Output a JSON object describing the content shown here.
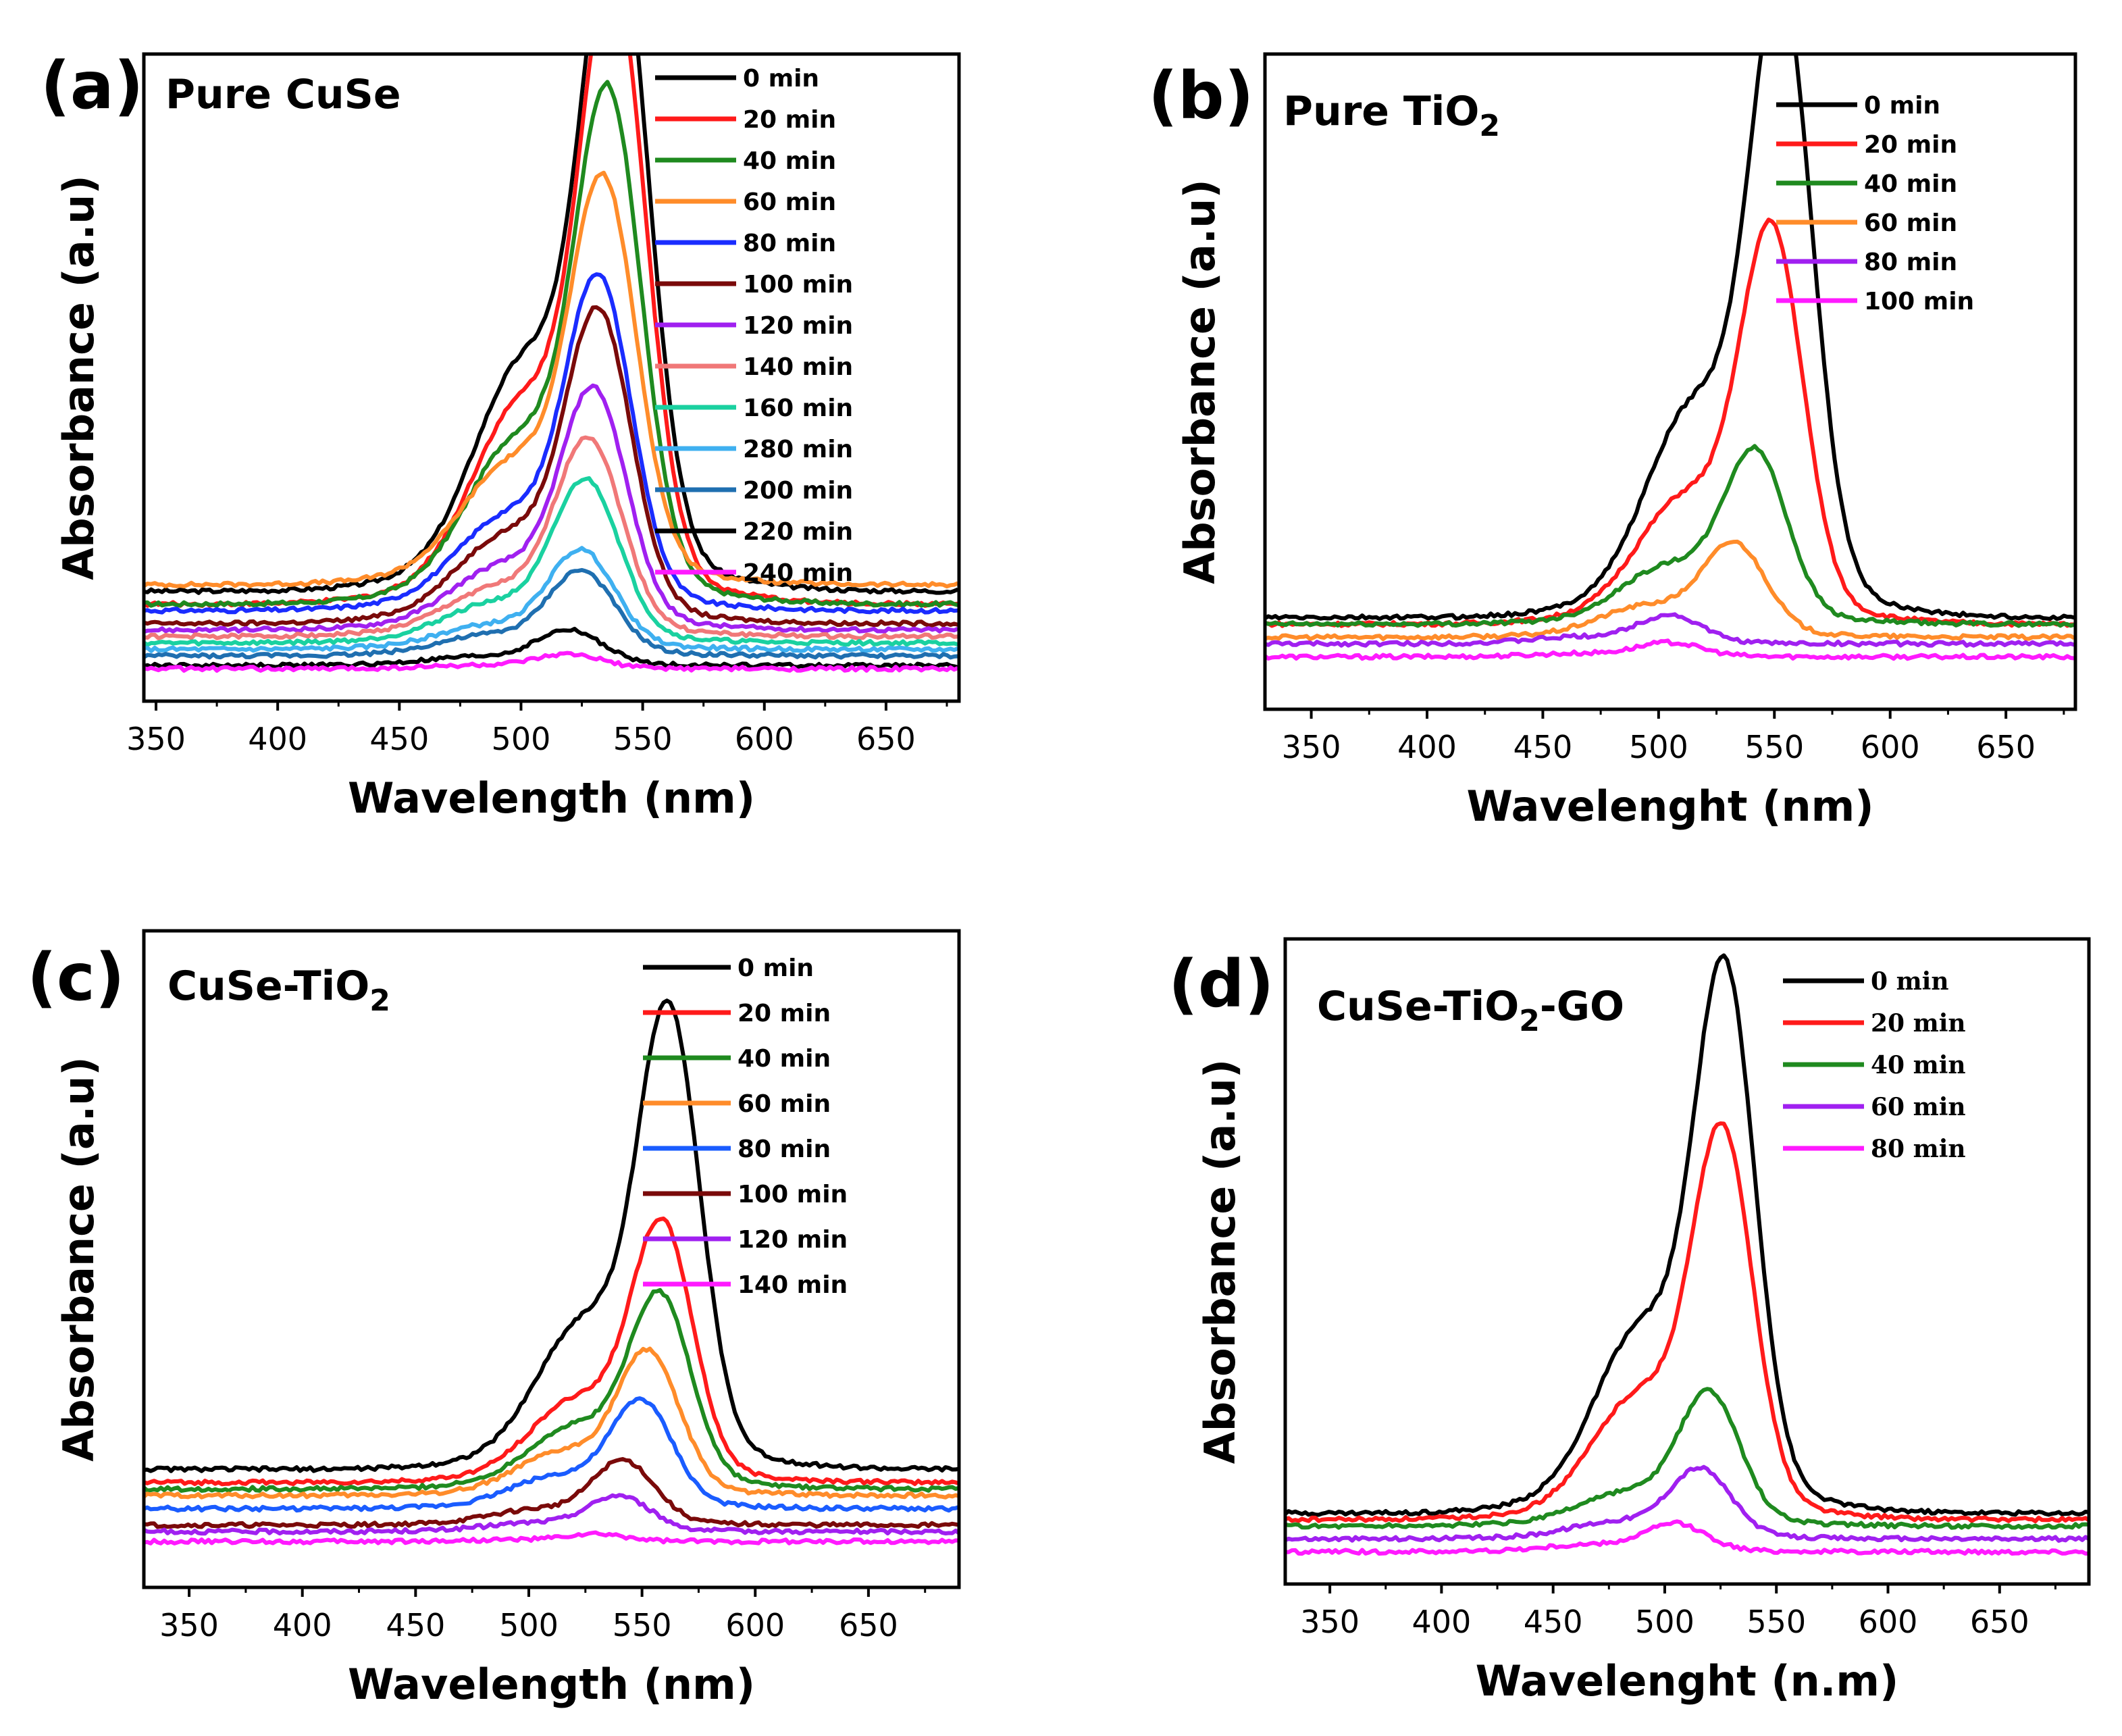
{
  "chart_data": [
    {
      "type": "line",
      "panel_label": "(a)",
      "title": "Pure CuSe",
      "title_sub": "",
      "title_after": "",
      "xlabel": "Wavelength (nm)",
      "ylabel": "Absorbance (a.u)",
      "xlim": [
        345,
        680
      ],
      "ylim": [
        0,
        1.0
      ],
      "xticks": [
        350,
        400,
        450,
        500,
        550,
        600,
        650
      ],
      "legend_position": "top-right",
      "series": [
        {
          "name": "0 min",
          "color": "#000000",
          "peak_x": 539,
          "peak": 0.95,
          "shoulder": 0.3,
          "baseline": 0.17
        },
        {
          "name": "20 min",
          "color": "#ff1a1a",
          "peak_x": 538,
          "peak": 0.88,
          "shoulder": 0.28,
          "baseline": 0.15
        },
        {
          "name": "40 min",
          "color": "#1f8a1f",
          "peak_x": 536,
          "peak": 0.72,
          "shoulder": 0.28,
          "baseline": 0.15
        },
        {
          "name": "60 min",
          "color": "#ff8c2a",
          "peak_x": 534,
          "peak": 0.57,
          "shoulder": 0.26,
          "baseline": 0.18
        },
        {
          "name": "80 min",
          "color": "#1a2cff",
          "peak_x": 532,
          "peak": 0.47,
          "shoulder": 0.24,
          "baseline": 0.14
        },
        {
          "name": "100 min",
          "color": "#7a0a0a",
          "peak_x": 532,
          "peak": 0.44,
          "shoulder": 0.24,
          "baseline": 0.12
        },
        {
          "name": "120 min",
          "color": "#a020f0",
          "peak_x": 530,
          "peak": 0.34,
          "shoulder": 0.22,
          "baseline": 0.11
        },
        {
          "name": "140 min",
          "color": "#f07878",
          "peak_x": 528,
          "peak": 0.28,
          "shoulder": 0.2,
          "baseline": 0.1
        },
        {
          "name": "160 min",
          "color": "#1ad1a0",
          "peak_x": 527,
          "peak": 0.23,
          "shoulder": 0.2,
          "baseline": 0.09
        },
        {
          "name": "280 min",
          "color": "#3fb0f0",
          "peak_x": 525,
          "peak": 0.14,
          "shoulder": 0.2,
          "baseline": 0.08
        },
        {
          "name": "200 min",
          "color": "#1f6fb0",
          "peak_x": 525,
          "peak": 0.12,
          "shoulder": 0.2,
          "baseline": 0.07
        },
        {
          "name": "220 min",
          "color": "#000000",
          "peak_x": 520,
          "peak": 0.05,
          "shoulder": 0.2,
          "baseline": 0.055
        },
        {
          "name": "240 min",
          "color": "#ff1aff",
          "peak_x": 520,
          "peak": 0.02,
          "shoulder": 0.2,
          "baseline": 0.05
        }
      ]
    },
    {
      "type": "line",
      "panel_label": "(b)",
      "title": "Pure TiO",
      "title_sub": "2",
      "title_after": "",
      "xlabel": "Wavelenght (nm)",
      "ylabel": "Absorbance (a.u)",
      "xlim": [
        330,
        680
      ],
      "ylim": [
        0,
        1.0
      ],
      "xticks": [
        350,
        400,
        450,
        500,
        550,
        600,
        650
      ],
      "legend_position": "top-right",
      "series": [
        {
          "name": "0 min",
          "color": "#000000",
          "peak_x": 553,
          "peak": 0.87,
          "shoulder": 0.3,
          "baseline": 0.14
        },
        {
          "name": "20 min",
          "color": "#ff1a1a",
          "peak_x": 549,
          "peak": 0.55,
          "shoulder": 0.28,
          "baseline": 0.13
        },
        {
          "name": "40 min",
          "color": "#1f8a1f",
          "peak_x": 542,
          "peak": 0.24,
          "shoulder": 0.3,
          "baseline": 0.13
        },
        {
          "name": "60 min",
          "color": "#ff8c2a",
          "peak_x": 533,
          "peak": 0.13,
          "shoulder": 0.3,
          "baseline": 0.11
        },
        {
          "name": "80 min",
          "color": "#a020f0",
          "peak_x": 505,
          "peak": 0.04,
          "shoulder": 0.2,
          "baseline": 0.1
        },
        {
          "name": "100 min",
          "color": "#ff1aff",
          "peak_x": 505,
          "peak": 0.02,
          "shoulder": 0.2,
          "baseline": 0.08
        }
      ]
    },
    {
      "type": "line",
      "panel_label": "(c)",
      "title": "CuSe-TiO",
      "title_sub": "2",
      "title_after": "",
      "xlabel": "Wavelength (nm)",
      "ylabel": "Absorbance (a.u)",
      "xlim": [
        330,
        690
      ],
      "ylim": [
        0,
        1.0
      ],
      "xticks": [
        350,
        400,
        450,
        500,
        550,
        600,
        650
      ],
      "legend_position": "top-right",
      "series": [
        {
          "name": "0 min",
          "color": "#000000",
          "peak_x": 562,
          "peak": 0.64,
          "shoulder": 0.28,
          "baseline": 0.18
        },
        {
          "name": "20 min",
          "color": "#ff1a1a",
          "peak_x": 559,
          "peak": 0.36,
          "shoulder": 0.28,
          "baseline": 0.16
        },
        {
          "name": "40 min",
          "color": "#1f8a1f",
          "peak_x": 558,
          "peak": 0.27,
          "shoulder": 0.28,
          "baseline": 0.15
        },
        {
          "name": "60 min",
          "color": "#ff8c2a",
          "peak_x": 553,
          "peak": 0.2,
          "shoulder": 0.26,
          "baseline": 0.14
        },
        {
          "name": "80 min",
          "color": "#1a5cff",
          "peak_x": 550,
          "peak": 0.15,
          "shoulder": 0.26,
          "baseline": 0.12
        },
        {
          "name": "100 min",
          "color": "#7a0a0a",
          "peak_x": 542,
          "peak": 0.09,
          "shoulder": 0.2,
          "baseline": 0.095
        },
        {
          "name": "120 min",
          "color": "#a020f0",
          "peak_x": 540,
          "peak": 0.05,
          "shoulder": 0.2,
          "baseline": 0.085
        },
        {
          "name": "140 min",
          "color": "#ff1aff",
          "peak_x": 530,
          "peak": 0.01,
          "shoulder": 0.2,
          "baseline": 0.07
        }
      ]
    },
    {
      "type": "line",
      "panel_label": "(d)",
      "title": "CuSe-TiO",
      "title_sub": "2",
      "title_after": "-GO",
      "xlabel": "Wavelenght (n.m)",
      "ylabel": "Absorbance (a.u)",
      "xlim": [
        330,
        690
      ],
      "ylim": [
        0,
        1.0
      ],
      "xticks": [
        350,
        400,
        450,
        500,
        550,
        600,
        650
      ],
      "legend_position": "top-right",
      "legend_font": "serif",
      "series": [
        {
          "name": "0 min",
          "color": "#000000",
          "peak_x": 527,
          "peak": 0.77,
          "shoulder": 0.3,
          "baseline": 0.11
        },
        {
          "name": "20 min",
          "color": "#ff1a1a",
          "peak_x": 526,
          "peak": 0.55,
          "shoulder": 0.28,
          "baseline": 0.1
        },
        {
          "name": "40 min",
          "color": "#1f8a1f",
          "peak_x": 520,
          "peak": 0.19,
          "shoulder": 0.2,
          "baseline": 0.09
        },
        {
          "name": "60 min",
          "color": "#a020f0",
          "peak_x": 516,
          "peak": 0.1,
          "shoulder": 0.2,
          "baseline": 0.07
        },
        {
          "name": "80 min",
          "color": "#ff1aff",
          "peak_x": 505,
          "peak": 0.04,
          "shoulder": 0.2,
          "baseline": 0.05
        }
      ]
    }
  ]
}
